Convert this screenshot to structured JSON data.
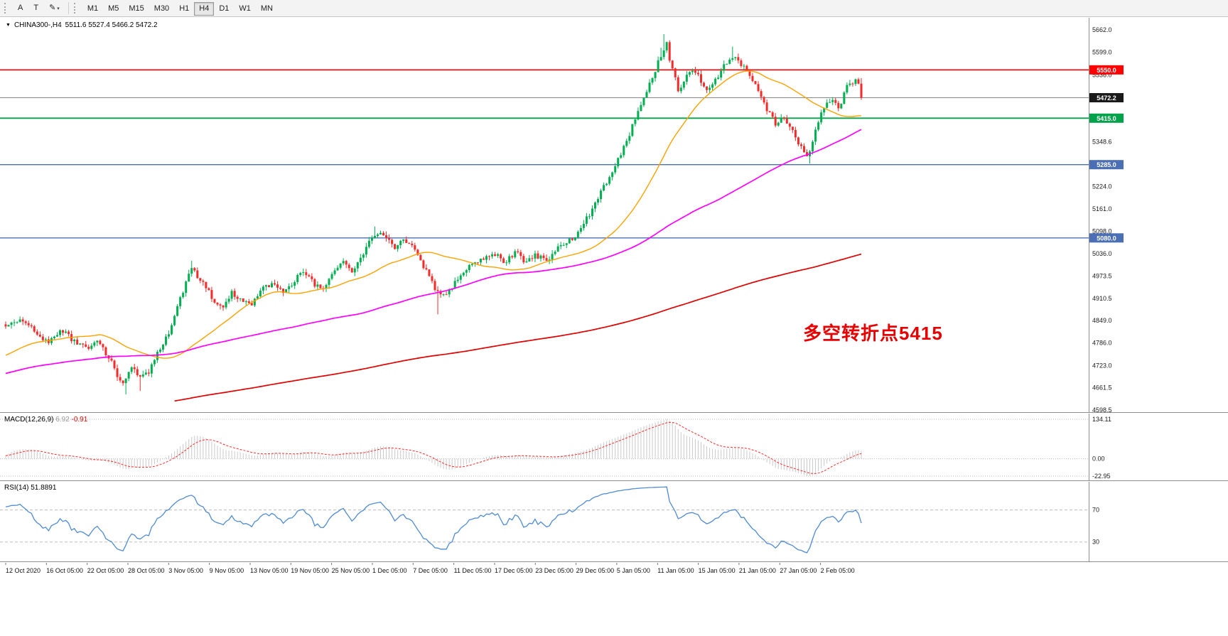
{
  "toolbar": {
    "tool_a": "A",
    "tool_t": "T",
    "draw_tool": "✎",
    "timeframes": [
      "M1",
      "M5",
      "M15",
      "M30",
      "H1",
      "H4",
      "D1",
      "W1",
      "MN"
    ],
    "active_timeframe": "H4"
  },
  "chart": {
    "title_symbol": "CHINA300-,H4",
    "title_ohlc": "5511.6 5527.4 5466.2 5472.2",
    "annotation": {
      "text": "多空转折点5415",
      "color": "#e60000"
    },
    "y_ticks": [
      "5662.0",
      "5599.0",
      "5536.0",
      "5348.6",
      "5224.0",
      "5161.0",
      "5098.0",
      "5036.0",
      "4973.5",
      "4910.5",
      "4849.0",
      "4786.0",
      "4723.0",
      "4661.5",
      "4598.5"
    ],
    "hlines": [
      {
        "price": 5550.0,
        "label": "5550.0",
        "line_color": "#ff0000",
        "badge_color": "#ff0000",
        "width": 1.6
      },
      {
        "price": 5472.2,
        "label": "5472.2",
        "line_color": "#8a8a8a",
        "badge_color": "#1a1a1a",
        "width": 1
      },
      {
        "price": 5415.0,
        "label": "5415.0",
        "line_color": "#00a24a",
        "badge_color": "#00a24a",
        "width": 1.8
      },
      {
        "price": 5285.0,
        "label": "5285.0",
        "line_color": "#4a6fb5",
        "badge_color": "#4a6fb5",
        "width": 1.3
      },
      {
        "price": 5080.0,
        "label": "5080.0",
        "line_color": "#4a6fb5",
        "badge_color": "#4a6fb5",
        "width": 1.3
      }
    ],
    "colors": {
      "up": "#00b050",
      "down": "#f42b2b",
      "ma_fast": "#ffa200",
      "ma_mid": "#ff00ff",
      "ma_slow": "#e00000",
      "hist": "#c9c9c9",
      "signal": "#ff2a2a",
      "rsi": "#4f8bd4",
      "axis_text": "#1a1a1a",
      "separator": "#8e8e8e",
      "level_dash": "#bdbdbd"
    }
  },
  "macd": {
    "name": "MACD(12,26,9)",
    "value_main": "6.92",
    "value_signal": "-0.91",
    "axis_labels": [
      "134.11",
      "0.00",
      "-22.95"
    ]
  },
  "rsi": {
    "name": "RSI(14)",
    "value": "51.8891",
    "levels": [
      "70",
      "30"
    ]
  },
  "time_axis": {
    "labels": [
      "12 Oct 2020",
      "16 Oct 05:00",
      "22 Oct 05:00",
      "28 Oct 05:00",
      "3 Nov 05:00",
      "9 Nov 05:00",
      "13 Nov 05:00",
      "19 Nov 05:00",
      "25 Nov 05:00",
      "1 Dec 05:00",
      "7 Dec 05:00",
      "11 Dec 05:00",
      "17 Dec 05:00",
      "23 Dec 05:00",
      "29 Dec 05:00",
      "5 Jan 05:00",
      "11 Jan 05:00",
      "15 Jan 05:00",
      "21 Jan 05:00",
      "27 Jan 05:00",
      "2 Feb 05:00"
    ]
  },
  "chart_data": {
    "type": "candlestick",
    "symbol": "CHINA300-",
    "timeframe": "H4",
    "title": "CHINA300-,H4 5511.6 5527.4 5466.2 5472.2",
    "y_range": [
      4598.5,
      5662.0
    ],
    "bars": 300,
    "last": {
      "open": 5511.6,
      "high": 5527.4,
      "low": 5466.2,
      "close": 5472.2
    },
    "price_path": [
      [
        8,
        4840
      ],
      [
        30,
        4856
      ],
      [
        55,
        4806
      ],
      [
        70,
        4792
      ],
      [
        85,
        4822
      ],
      [
        105,
        4792
      ],
      [
        122,
        4766
      ],
      [
        135,
        4796
      ],
      [
        150,
        4756
      ],
      [
        163,
        4706
      ],
      [
        172,
        4672
      ],
      [
        185,
        4722
      ],
      [
        196,
        4684
      ],
      [
        210,
        4706
      ],
      [
        225,
        4772
      ],
      [
        242,
        4832
      ],
      [
        258,
        4936
      ],
      [
        270,
        4996
      ],
      [
        285,
        4956
      ],
      [
        300,
        4908
      ],
      [
        312,
        4882
      ],
      [
        325,
        4926
      ],
      [
        340,
        4906
      ],
      [
        355,
        4896
      ],
      [
        370,
        4936
      ],
      [
        385,
        4958
      ],
      [
        398,
        4922
      ],
      [
        412,
        4956
      ],
      [
        425,
        4992
      ],
      [
        438,
        4958
      ],
      [
        452,
        4938
      ],
      [
        468,
        4976
      ],
      [
        482,
        5012
      ],
      [
        495,
        4986
      ],
      [
        510,
        5036
      ],
      [
        528,
        5092
      ],
      [
        542,
        5082
      ],
      [
        556,
        5052
      ],
      [
        570,
        5076
      ],
      [
        585,
        5046
      ],
      [
        598,
        4992
      ],
      [
        610,
        4948
      ],
      [
        622,
        4912
      ],
      [
        640,
        4952
      ],
      [
        655,
        4996
      ],
      [
        670,
        5012
      ],
      [
        685,
        5026
      ],
      [
        698,
        5036
      ],
      [
        712,
        5012
      ],
      [
        726,
        5042
      ],
      [
        740,
        5012
      ],
      [
        755,
        5032
      ],
      [
        768,
        5012
      ],
      [
        782,
        5046
      ],
      [
        797,
        5066
      ],
      [
        812,
        5092
      ],
      [
        828,
        5142
      ],
      [
        842,
        5192
      ],
      [
        858,
        5256
      ],
      [
        875,
        5316
      ],
      [
        890,
        5392
      ],
      [
        905,
        5462
      ],
      [
        918,
        5532
      ],
      [
        930,
        5588
      ],
      [
        938,
        5622
      ],
      [
        946,
        5548
      ],
      [
        955,
        5492
      ],
      [
        965,
        5532
      ],
      [
        975,
        5556
      ],
      [
        985,
        5522
      ],
      [
        995,
        5488
      ],
      [
        1008,
        5522
      ],
      [
        1020,
        5566
      ],
      [
        1032,
        5586
      ],
      [
        1045,
        5562
      ],
      [
        1058,
        5522
      ],
      [
        1070,
        5476
      ],
      [
        1082,
        5432
      ],
      [
        1094,
        5388
      ],
      [
        1100,
        5422
      ],
      [
        1112,
        5388
      ],
      [
        1124,
        5342
      ],
      [
        1138,
        5302
      ],
      [
        1150,
        5396
      ],
      [
        1155,
        5432
      ],
      [
        1168,
        5466
      ],
      [
        1180,
        5442
      ],
      [
        1192,
        5506
      ],
      [
        1205,
        5522
      ],
      [
        1212,
        5472.2
      ]
    ],
    "spikes": [
      {
        "x": 936,
        "high": 5650
      },
      {
        "x": 930,
        "high": 5612
      },
      {
        "x": 1032,
        "high": 5615
      },
      {
        "x": 1138,
        "low": 5288
      },
      {
        "x": 176,
        "low": 4642
      },
      {
        "x": 196,
        "low": 4652
      },
      {
        "x": 618,
        "low": 4866
      },
      {
        "x": 528,
        "high": 5112
      },
      {
        "x": 270,
        "high": 5016
      }
    ],
    "ma_periods": {
      "fast": 34,
      "mid": 115,
      "slow": 360
    },
    "macd_params": [
      12,
      26,
      9
    ],
    "rsi_period": 14,
    "rsi_view_range": [
      12,
      98
    ]
  }
}
